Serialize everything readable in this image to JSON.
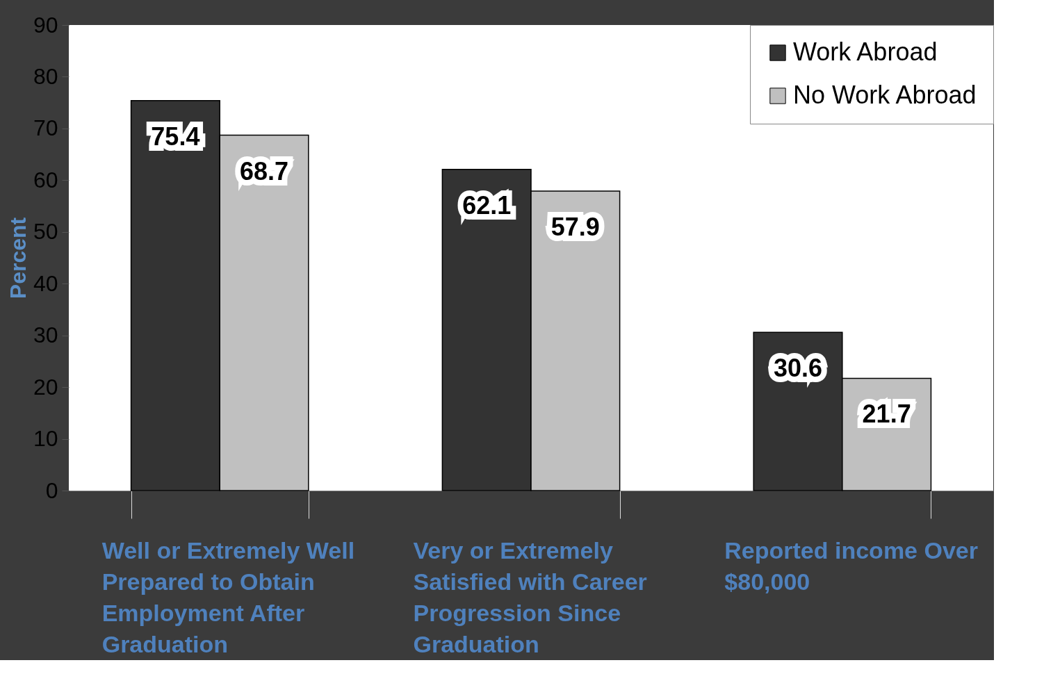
{
  "chart_data": {
    "type": "bar",
    "ylabel": "Percent",
    "categories": [
      "Well or Extremely Well Prepared to Obtain Employment After Graduation",
      "Very or Extremely Satisfied with Career Progression Since Graduation",
      "Reported income Over $80,000"
    ],
    "series": [
      {
        "name": "Work Abroad",
        "color": "#333333",
        "values": [
          75.4,
          62.1,
          30.6
        ]
      },
      {
        "name": "No Work Abroad",
        "color": "#c0c0c0",
        "values": [
          68.7,
          57.9,
          21.7
        ]
      }
    ],
    "ylim": [
      0,
      90
    ],
    "yticks": [
      0,
      10,
      20,
      30,
      40,
      50,
      60,
      70,
      80,
      90
    ],
    "grid": false,
    "legend": "top right",
    "data_labels": true
  }
}
